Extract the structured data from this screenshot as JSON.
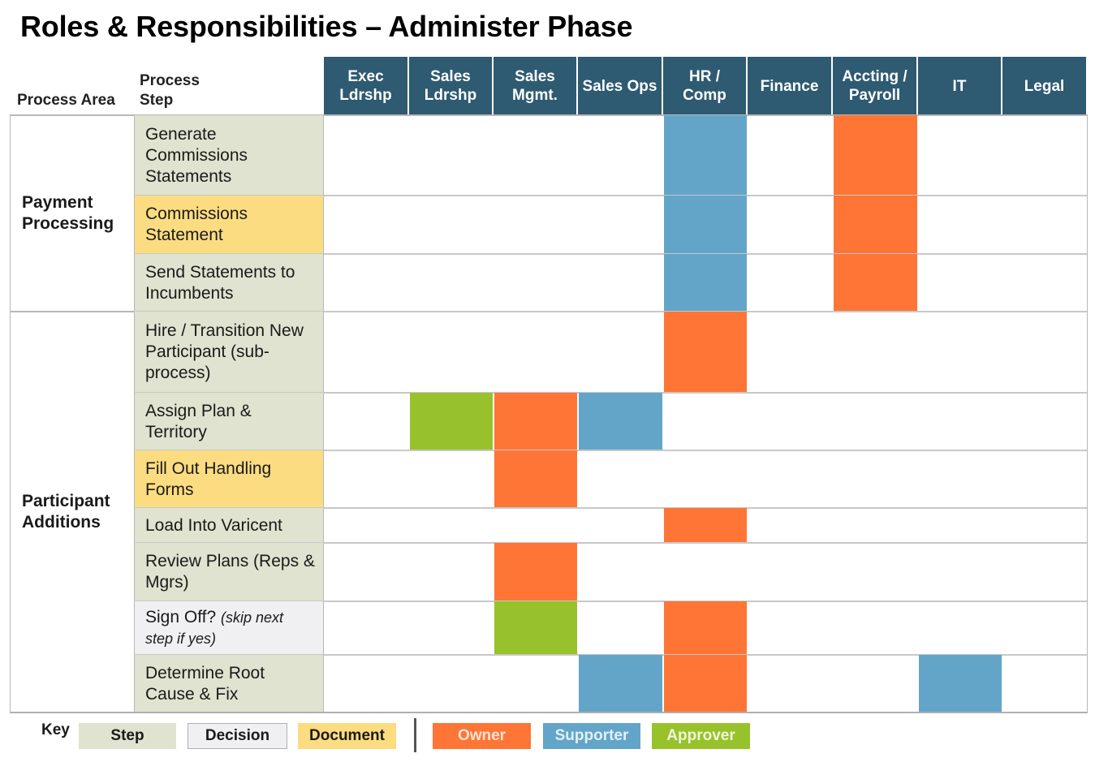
{
  "title": "Roles & Responsibilities – Administer Phase",
  "headers": {
    "process_area": "Process Area",
    "process_step": "Process Step"
  },
  "roles": [
    "Exec Ldrshp",
    "Sales Ldrshp",
    "Sales Mgmt.",
    "Sales Ops",
    "HR / Comp",
    "Finance",
    "Accting / Payroll",
    "IT",
    "Legal"
  ],
  "areas": [
    {
      "label": "Payment Processing"
    },
    {
      "label": "Participant Additions"
    }
  ],
  "steps": [
    {
      "text": "Generate Commissions Statements",
      "note": "",
      "kind": "step",
      "cells": {
        "HR / Comp": "supporter",
        "Accting / Payroll": "owner"
      }
    },
    {
      "text": "Commissions Statement",
      "note": "",
      "kind": "document",
      "cells": {
        "HR / Comp": "supporter",
        "Accting / Payroll": "owner"
      }
    },
    {
      "text": "Send Statements to Incumbents",
      "note": "",
      "kind": "step",
      "cells": {
        "HR / Comp": "supporter",
        "Accting / Payroll": "owner"
      }
    },
    {
      "text": "Hire / Transition New Participant (sub-process)",
      "note": "",
      "kind": "step",
      "cells": {
        "HR / Comp": "owner"
      }
    },
    {
      "text": "Assign Plan & Territory",
      "note": "",
      "kind": "step",
      "cells": {
        "Sales Ldrshp": "approver",
        "Sales Mgmt.": "owner",
        "Sales Ops": "supporter"
      }
    },
    {
      "text": "Fill Out Handling Forms",
      "note": "",
      "kind": "document",
      "cells": {
        "Sales Mgmt.": "owner"
      }
    },
    {
      "text": "Load Into Varicent",
      "note": "",
      "kind": "step",
      "cells": {
        "HR / Comp": "owner"
      }
    },
    {
      "text": "Review Plans (Reps & Mgrs)",
      "note": "",
      "kind": "step",
      "cells": {
        "Sales Mgmt.": "owner"
      }
    },
    {
      "text": "Sign Off?",
      "note": "(skip next step if yes)",
      "kind": "decision",
      "cells": {
        "Sales Mgmt.": "approver",
        "HR / Comp": "owner"
      }
    },
    {
      "text": "Determine Root Cause & Fix",
      "note": "",
      "kind": "step",
      "cells": {
        "Sales Ops": "supporter",
        "HR / Comp": "owner",
        "IT": "supporter"
      }
    }
  ],
  "key": {
    "label": "Key",
    "step": "Step",
    "decision": "Decision",
    "document": "Document",
    "owner": "Owner",
    "supporter": "Supporter",
    "approver": "Approver"
  },
  "colors": {
    "header_bg": "#2e5a72",
    "step_bg": "#dfe3cf",
    "decision_bg": "#f0f0f2",
    "document_bg": "#fcdc80",
    "owner": "#fe7536",
    "supporter": "#63a5c8",
    "approver": "#98c22b"
  }
}
